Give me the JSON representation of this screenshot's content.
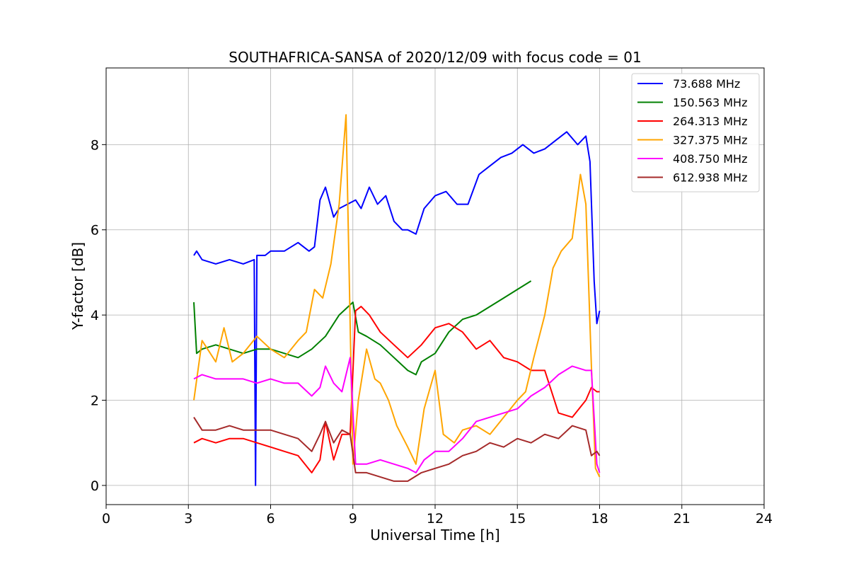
{
  "chart_data": {
    "type": "line",
    "title": "SOUTHAFRICA-SANSA of 2020/12/09 with focus code = 01",
    "xlabel": "Universal Time [h]",
    "ylabel": "Y-factor [dB]",
    "xlim": [
      0,
      24
    ],
    "ylim": [
      -0.45,
      9.8
    ],
    "xticks": [
      0,
      3,
      6,
      9,
      12,
      15,
      18,
      21,
      24
    ],
    "yticks": [
      0,
      2,
      4,
      6,
      8
    ],
    "grid": true,
    "legend_position": "top-right",
    "series": [
      {
        "name": " 73.688 MHz",
        "color": "#0000ff",
        "x": [
          3.2,
          3.3,
          3.5,
          4.0,
          4.5,
          5.0,
          5.4,
          5.45,
          5.5,
          5.8,
          6.0,
          6.5,
          7.0,
          7.4,
          7.6,
          7.8,
          8.0,
          8.3,
          8.5,
          8.8,
          9.1,
          9.3,
          9.6,
          9.9,
          10.2,
          10.5,
          10.8,
          11.0,
          11.3,
          11.6,
          12.0,
          12.4,
          12.8,
          13.2,
          13.6,
          14.0,
          14.4,
          14.8,
          15.2,
          15.6,
          16.0,
          16.4,
          16.8,
          17.2,
          17.5,
          17.65,
          17.8,
          17.9,
          18.0
        ],
        "y": [
          5.4,
          5.5,
          5.3,
          5.2,
          5.3,
          5.2,
          5.3,
          0.0,
          5.4,
          5.4,
          5.5,
          5.5,
          5.7,
          5.5,
          5.6,
          6.7,
          7.0,
          6.3,
          6.5,
          6.6,
          6.7,
          6.5,
          7.0,
          6.6,
          6.8,
          6.2,
          6.0,
          6.0,
          5.9,
          6.5,
          6.8,
          6.9,
          6.6,
          6.6,
          7.3,
          7.5,
          7.7,
          7.8,
          8.0,
          7.8,
          7.9,
          8.1,
          8.3,
          8.0,
          8.2,
          7.6,
          4.8,
          3.8,
          4.1
        ]
      },
      {
        "name": "150.563 MHz",
        "color": "#008000",
        "x": [
          3.2,
          3.3,
          3.5,
          4.0,
          4.5,
          5.0,
          5.5,
          6.0,
          6.5,
          7.0,
          7.5,
          8.0,
          8.5,
          9.0,
          9.2,
          9.5,
          10.0,
          10.5,
          11.0,
          11.3,
          11.5,
          12.0,
          12.5,
          13.0,
          13.5,
          14.0,
          14.5,
          15.0,
          15.5
        ],
        "y": [
          4.3,
          3.1,
          3.2,
          3.3,
          3.2,
          3.1,
          3.2,
          3.2,
          3.1,
          3.0,
          3.2,
          3.5,
          4.0,
          4.3,
          3.6,
          3.5,
          3.3,
          3.0,
          2.7,
          2.6,
          2.9,
          3.1,
          3.6,
          3.9,
          4.0,
          4.2,
          4.4,
          4.6,
          4.8
        ]
      },
      {
        "name": "264.313 MHz",
        "color": "#ff0000",
        "x": [
          3.2,
          3.5,
          4.0,
          4.5,
          5.0,
          5.5,
          6.0,
          6.5,
          7.0,
          7.5,
          7.8,
          8.0,
          8.3,
          8.6,
          8.9,
          9.1,
          9.3,
          9.6,
          10.0,
          10.5,
          11.0,
          11.5,
          12.0,
          12.5,
          13.0,
          13.5,
          14.0,
          14.5,
          15.0,
          15.5,
          16.0,
          16.5,
          17.0,
          17.5,
          17.7,
          17.9,
          18.0
        ],
        "y": [
          1.0,
          1.1,
          1.0,
          1.1,
          1.1,
          1.0,
          0.9,
          0.8,
          0.7,
          0.3,
          0.6,
          1.5,
          0.6,
          1.2,
          1.2,
          4.1,
          4.2,
          4.0,
          3.6,
          3.3,
          3.0,
          3.3,
          3.7,
          3.8,
          3.6,
          3.2,
          3.4,
          3.0,
          2.9,
          2.7,
          2.7,
          1.7,
          1.6,
          2.0,
          2.3,
          2.2,
          2.2
        ]
      },
      {
        "name": "327.375 MHz",
        "color": "#ffa500",
        "x": [
          3.2,
          3.5,
          4.0,
          4.3,
          4.6,
          5.0,
          5.5,
          6.0,
          6.5,
          7.0,
          7.3,
          7.6,
          7.9,
          8.2,
          8.5,
          8.75,
          9.0,
          9.2,
          9.5,
          9.8,
          10.0,
          10.3,
          10.6,
          11.0,
          11.3,
          11.6,
          12.0,
          12.3,
          12.7,
          13.0,
          13.5,
          14.0,
          14.5,
          15.0,
          15.3,
          15.6,
          16.0,
          16.3,
          16.6,
          17.0,
          17.3,
          17.5,
          17.7,
          17.85,
          18.0
        ],
        "y": [
          2.0,
          3.4,
          2.9,
          3.7,
          2.9,
          3.1,
          3.5,
          3.2,
          3.0,
          3.4,
          3.6,
          4.6,
          4.4,
          5.2,
          6.6,
          8.7,
          0.5,
          2.0,
          3.2,
          2.5,
          2.4,
          2.0,
          1.4,
          0.9,
          0.5,
          1.8,
          2.7,
          1.2,
          1.0,
          1.3,
          1.4,
          1.2,
          1.6,
          2.0,
          2.2,
          3.0,
          4.0,
          5.1,
          5.5,
          5.8,
          7.3,
          6.6,
          2.8,
          0.4,
          0.2
        ]
      },
      {
        "name": "408.750 MHz",
        "color": "#ff00ff",
        "x": [
          3.2,
          3.5,
          4.0,
          4.5,
          5.0,
          5.5,
          6.0,
          6.5,
          7.0,
          7.5,
          7.8,
          8.0,
          8.3,
          8.6,
          8.9,
          9.1,
          9.5,
          10.0,
          10.5,
          11.0,
          11.3,
          11.6,
          12.0,
          12.5,
          13.0,
          13.5,
          14.0,
          14.5,
          15.0,
          15.5,
          16.0,
          16.5,
          17.0,
          17.5,
          17.7,
          17.9,
          18.0
        ],
        "y": [
          2.5,
          2.6,
          2.5,
          2.5,
          2.5,
          2.4,
          2.5,
          2.4,
          2.4,
          2.1,
          2.3,
          2.8,
          2.4,
          2.2,
          3.0,
          0.5,
          0.5,
          0.6,
          0.5,
          0.4,
          0.3,
          0.6,
          0.8,
          0.8,
          1.1,
          1.5,
          1.6,
          1.7,
          1.8,
          2.1,
          2.3,
          2.6,
          2.8,
          2.7,
          2.7,
          0.5,
          0.3
        ]
      },
      {
        "name": "612.938 MHz",
        "color": "#a52a2a",
        "x": [
          3.2,
          3.5,
          4.0,
          4.5,
          5.0,
          5.5,
          6.0,
          6.5,
          7.0,
          7.5,
          7.8,
          8.0,
          8.3,
          8.6,
          8.9,
          9.1,
          9.5,
          10.0,
          10.5,
          11.0,
          11.5,
          12.0,
          12.5,
          13.0,
          13.5,
          14.0,
          14.5,
          15.0,
          15.5,
          16.0,
          16.5,
          17.0,
          17.5,
          17.7,
          17.9,
          18.0
        ],
        "y": [
          1.6,
          1.3,
          1.3,
          1.4,
          1.3,
          1.3,
          1.3,
          1.2,
          1.1,
          0.8,
          1.2,
          1.5,
          1.0,
          1.3,
          1.2,
          0.3,
          0.3,
          0.2,
          0.1,
          0.1,
          0.3,
          0.4,
          0.5,
          0.7,
          0.8,
          1.0,
          0.9,
          1.1,
          1.0,
          1.2,
          1.1,
          1.4,
          1.3,
          0.7,
          0.8,
          0.7
        ]
      }
    ]
  }
}
